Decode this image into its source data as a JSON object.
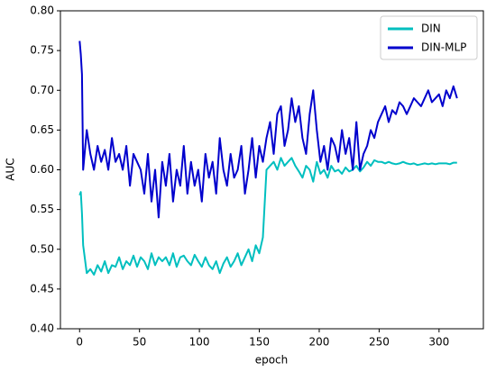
{
  "chart_data": {
    "type": "line",
    "xlabel": "epoch",
    "ylabel": "AUC",
    "x": [
      0,
      1,
      2,
      3,
      6,
      9,
      12,
      15,
      18,
      21,
      24,
      27,
      30,
      33,
      36,
      39,
      42,
      45,
      48,
      51,
      54,
      57,
      60,
      63,
      66,
      69,
      72,
      75,
      78,
      81,
      84,
      87,
      90,
      93,
      96,
      99,
      102,
      105,
      108,
      111,
      114,
      117,
      120,
      123,
      126,
      129,
      132,
      135,
      138,
      141,
      144,
      147,
      150,
      153,
      156,
      159,
      162,
      165,
      168,
      171,
      174,
      177,
      180,
      183,
      186,
      189,
      192,
      195,
      198,
      201,
      204,
      207,
      210,
      213,
      216,
      219,
      222,
      225,
      228,
      231,
      234,
      237,
      240,
      243,
      246,
      249,
      252,
      255,
      258,
      261,
      264,
      267,
      270,
      273,
      276,
      279,
      282,
      285,
      288,
      291,
      294,
      297,
      300,
      303,
      306,
      309,
      312,
      315
    ],
    "series": [
      {
        "name": "DIN",
        "color": "#00bfbf",
        "values": [
          0.568,
          0.572,
          0.545,
          0.505,
          0.47,
          0.475,
          0.468,
          0.48,
          0.472,
          0.485,
          0.47,
          0.48,
          0.478,
          0.49,
          0.475,
          0.485,
          0.48,
          0.492,
          0.478,
          0.49,
          0.485,
          0.475,
          0.495,
          0.48,
          0.49,
          0.485,
          0.49,
          0.48,
          0.495,
          0.478,
          0.49,
          0.492,
          0.485,
          0.48,
          0.493,
          0.485,
          0.478,
          0.49,
          0.48,
          0.475,
          0.485,
          0.47,
          0.482,
          0.49,
          0.478,
          0.485,
          0.495,
          0.48,
          0.49,
          0.5,
          0.485,
          0.505,
          0.495,
          0.515,
          0.6,
          0.605,
          0.61,
          0.6,
          0.615,
          0.605,
          0.61,
          0.615,
          0.605,
          0.598,
          0.59,
          0.605,
          0.6,
          0.585,
          0.61,
          0.595,
          0.6,
          0.59,
          0.605,
          0.598,
          0.6,
          0.595,
          0.603,
          0.598,
          0.6,
          0.605,
          0.598,
          0.603,
          0.61,
          0.605,
          0.612,
          0.61,
          0.61,
          0.608,
          0.61,
          0.608,
          0.607,
          0.608,
          0.61,
          0.608,
          0.607,
          0.608,
          0.606,
          0.607,
          0.608,
          0.607,
          0.608,
          0.607,
          0.608,
          0.608,
          0.608,
          0.607,
          0.609,
          0.609
        ]
      },
      {
        "name": "DIN-MLP",
        "color": "#0000cd",
        "values": [
          0.762,
          0.745,
          0.72,
          0.6,
          0.65,
          0.62,
          0.6,
          0.63,
          0.61,
          0.625,
          0.6,
          0.64,
          0.61,
          0.62,
          0.6,
          0.63,
          0.58,
          0.62,
          0.61,
          0.6,
          0.57,
          0.62,
          0.56,
          0.6,
          0.54,
          0.61,
          0.58,
          0.62,
          0.56,
          0.6,
          0.58,
          0.63,
          0.57,
          0.61,
          0.58,
          0.6,
          0.56,
          0.62,
          0.59,
          0.61,
          0.57,
          0.64,
          0.6,
          0.58,
          0.62,
          0.59,
          0.6,
          0.63,
          0.57,
          0.6,
          0.64,
          0.59,
          0.63,
          0.61,
          0.64,
          0.66,
          0.62,
          0.67,
          0.68,
          0.63,
          0.65,
          0.69,
          0.66,
          0.68,
          0.64,
          0.62,
          0.67,
          0.7,
          0.65,
          0.61,
          0.63,
          0.6,
          0.64,
          0.63,
          0.61,
          0.65,
          0.62,
          0.64,
          0.6,
          0.66,
          0.6,
          0.62,
          0.63,
          0.65,
          0.64,
          0.66,
          0.67,
          0.68,
          0.66,
          0.675,
          0.67,
          0.685,
          0.68,
          0.67,
          0.68,
          0.69,
          0.685,
          0.68,
          0.69,
          0.7,
          0.685,
          0.69,
          0.695,
          0.68,
          0.7,
          0.69,
          0.705,
          0.69
        ]
      }
    ],
    "xlim": [
      -16,
      337
    ],
    "xticks": [
      0,
      50,
      100,
      150,
      200,
      250,
      300
    ],
    "ylim": [
      0.4,
      0.8
    ],
    "yticks": [
      {
        "value": 0.4,
        "label": "0.40"
      },
      {
        "value": 0.45,
        "label": "0.45"
      },
      {
        "value": 0.5,
        "label": "0.50"
      },
      {
        "value": 0.55,
        "label": "0.55"
      },
      {
        "value": 0.6,
        "label": "0.60"
      },
      {
        "value": 0.65,
        "label": "0.65"
      },
      {
        "value": 0.7,
        "label": "0.70"
      },
      {
        "value": 0.75,
        "label": "0.75"
      },
      {
        "value": 0.8,
        "label": "0.80"
      }
    ],
    "grid": false,
    "legend": "upper right"
  }
}
